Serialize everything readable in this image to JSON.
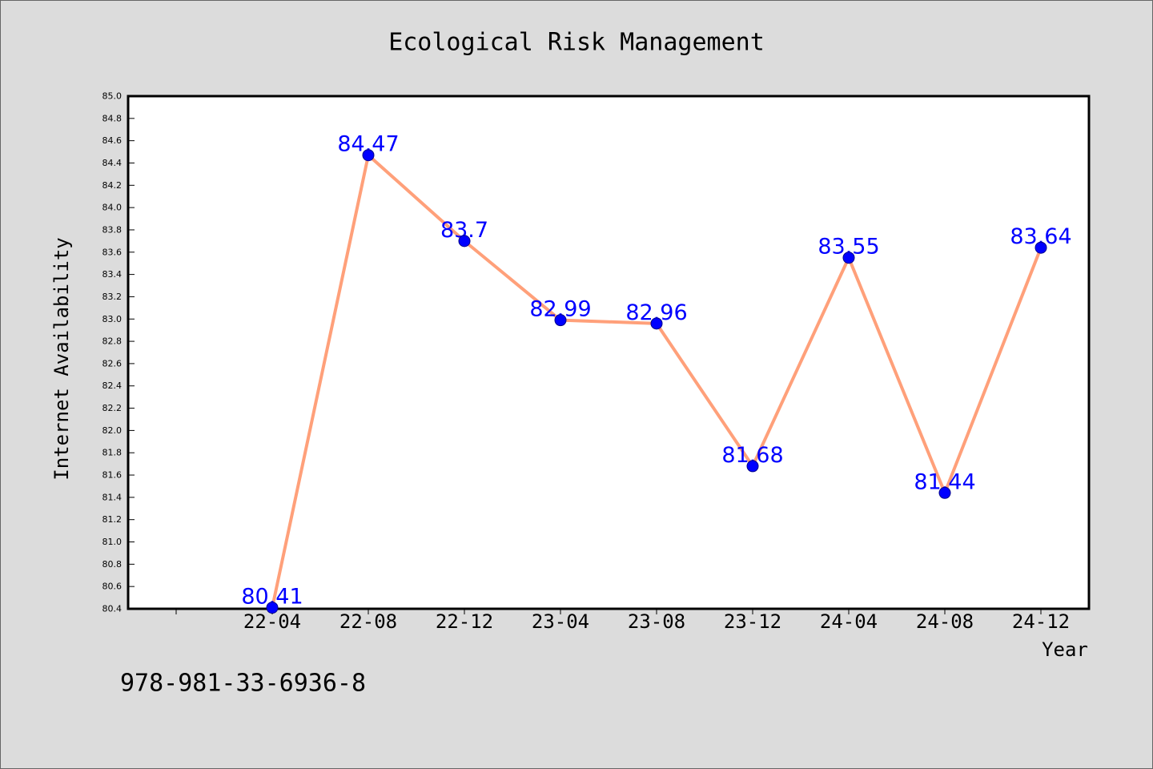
{
  "chart_data": {
    "type": "line",
    "title": "Ecological Risk Management",
    "xlabel": "Year",
    "ylabel": "Internet Availability",
    "categories": [
      "22-04",
      "22-08",
      "22-12",
      "23-04",
      "23-08",
      "23-12",
      "24-04",
      "24-08",
      "24-12"
    ],
    "series": [
      {
        "values": [
          80.41,
          84.47,
          83.7,
          82.99,
          82.96,
          81.68,
          83.55,
          81.44,
          83.64
        ]
      }
    ],
    "ylim": [
      80.4,
      85.0
    ],
    "yticks": [
      "80.4",
      "80.6",
      "80.8",
      "81.0",
      "81.2",
      "81.4",
      "81.6",
      "81.8",
      "82.0",
      "82.2",
      "82.4",
      "82.6",
      "82.8",
      "83.0",
      "83.2",
      "83.4",
      "83.6",
      "83.8",
      "84.0",
      "84.2",
      "84.4",
      "84.6",
      "84.8",
      "85.0"
    ],
    "grid": false,
    "data_labels": true,
    "colors": {
      "line": "#ffa07a",
      "marker": "#0000ff",
      "marker_edge": "#00008b",
      "data_label": "#0000ff",
      "plot_background": "#ffffff",
      "figure_background": "#dcdcdc"
    }
  },
  "footer": {
    "text": "978-981-33-6936-8"
  }
}
